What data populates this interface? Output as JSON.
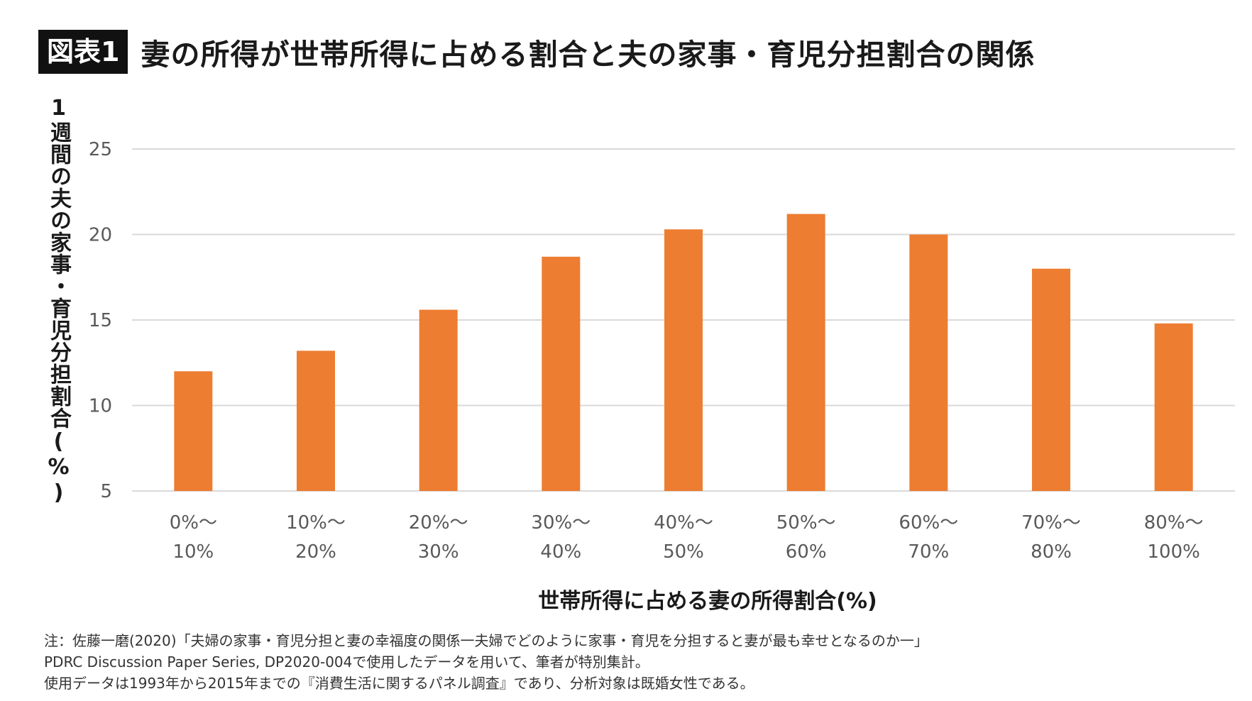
{
  "header": {
    "badge": "図表1",
    "title": "妻の所得が世帯所得に占める割合と夫の家事・育児分担割合の関係"
  },
  "chart_data": {
    "type": "bar",
    "title": "妻の所得が世帯所得に占める割合と夫の家事・育児分担割合の関係",
    "xlabel": "世帯所得に占める妻の所得割合(%)",
    "ylabel": "1週間の夫の家事・育児分担割合(%)",
    "categories": [
      [
        "0%〜",
        "10%"
      ],
      [
        "10%〜",
        "20%"
      ],
      [
        "20%〜",
        "30%"
      ],
      [
        "30%〜",
        "40%"
      ],
      [
        "40%〜",
        "50%"
      ],
      [
        "50%〜",
        "60%"
      ],
      [
        "60%〜",
        "70%"
      ],
      [
        "70%〜",
        "80%"
      ],
      [
        "80%〜",
        "100%"
      ]
    ],
    "values": [
      12.0,
      13.2,
      15.6,
      18.7,
      20.3,
      21.2,
      20.0,
      18.0,
      14.8
    ],
    "ylim": [
      5,
      25
    ],
    "yticks": [
      5,
      10,
      15,
      20,
      25
    ],
    "grid": true,
    "bar_color": "#ED7D31",
    "grid_color": "#d9d9d9"
  },
  "notes": [
    "注：佐藤一磨(2020)「夫婦の家事・育児分担と妻の幸福度の関係一夫婦でどのように家事・育児を分担すると妻が最も幸せとなるのか一」",
    "PDRC Discussion Paper Series, DP2020-004で使用したデータを用いて、筆者が特別集計。",
    "使用データは1993年から2015年までの『消費生活に関するパネル調査』であり、分析対象は既婚女性である。"
  ]
}
